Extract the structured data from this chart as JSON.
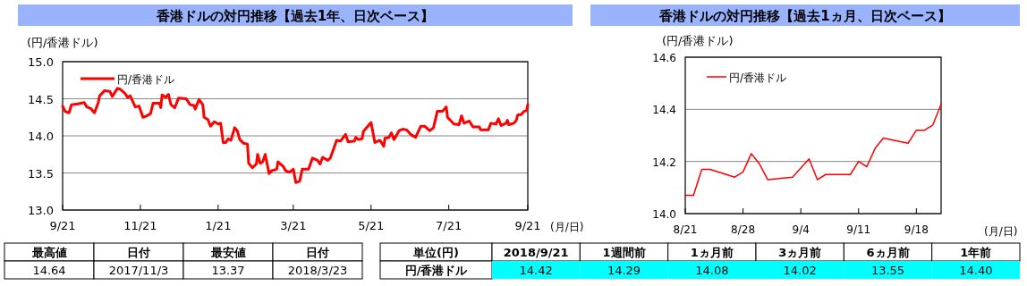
{
  "chart_data": [
    {
      "type": "line",
      "title": "香港ドルの対円推移【過去1年、日次ベース】",
      "ylabel": "(円/香港ドル)",
      "xlabel": "(月/日)",
      "xlim": [
        "2017-09-21",
        "2018-09-21"
      ],
      "xticks": [
        {
          "value": "2017-09-21",
          "label": "9/21"
        },
        {
          "value": "2017-11-21",
          "label": "11/21"
        },
        {
          "value": "2018-01-21",
          "label": "1/21"
        },
        {
          "value": "2018-03-21",
          "label": "3/21"
        },
        {
          "value": "2018-05-21",
          "label": "5/21"
        },
        {
          "value": "2018-07-21",
          "label": "7/21"
        },
        {
          "value": "2018-09-21",
          "label": "9/21"
        }
      ],
      "ylim": [
        13,
        15
      ],
      "yticks": [
        {
          "value": 13,
          "label": "13.0"
        },
        13.5,
        {
          "value": 14,
          "label": "14.0"
        },
        14.5,
        {
          "value": 15,
          "label": "15.0"
        }
      ],
      "grid": "y",
      "legend": "top left",
      "x": [
        "2017-09-21",
        "2017-09-23",
        "2017-09-26",
        "2017-09-28",
        "2017-10-03",
        "2017-10-08",
        "2017-10-10",
        "2017-10-13",
        "2017-10-16",
        "2017-10-19",
        "2017-10-20",
        "2017-10-24",
        "2017-10-28",
        "2017-10-30",
        "2017-11-03",
        "2017-11-05",
        "2017-11-09",
        "2017-11-11",
        "2017-11-13",
        "2017-11-17",
        "2017-11-20",
        "2017-11-23",
        "2017-11-26",
        "2017-11-29",
        "2017-12-01",
        "2017-12-06",
        "2017-12-07",
        "2017-12-08",
        "2017-12-11",
        "2017-12-13",
        "2017-12-15",
        "2017-12-18",
        "2017-12-21",
        "2017-12-27",
        "2017-12-30",
        "2018-01-02",
        "2018-01-03",
        "2018-01-06",
        "2018-01-09",
        "2018-01-10",
        "2018-01-13",
        "2018-01-15",
        "2018-01-18",
        "2018-01-21",
        "2018-01-23",
        "2018-01-25",
        "2018-01-27",
        "2018-01-29",
        "2018-01-31",
        "2018-02-03",
        "2018-02-05",
        "2018-02-07",
        "2018-02-10",
        "2018-02-13",
        "2018-02-14",
        "2018-02-17",
        "2018-02-20",
        "2018-02-21",
        "2018-02-23",
        "2018-02-25",
        "2018-02-27",
        "2018-03-02",
        "2018-03-04",
        "2018-03-08",
        "2018-03-09",
        "2018-03-13",
        "2018-03-15",
        "2018-03-18",
        "2018-03-21",
        "2018-03-23",
        "2018-03-26",
        "2018-03-28",
        "2018-04-02",
        "2018-04-05",
        "2018-04-09",
        "2018-04-11",
        "2018-04-13",
        "2018-04-17",
        "2018-04-19",
        "2018-04-24",
        "2018-04-27",
        "2018-05-01",
        "2018-05-03",
        "2018-05-08",
        "2018-05-09",
        "2018-05-11",
        "2018-05-14",
        "2018-05-15",
        "2018-05-21",
        "2018-05-24",
        "2018-05-28",
        "2018-05-31",
        "2018-06-01",
        "2018-06-04",
        "2018-06-06",
        "2018-06-08",
        "2018-06-12",
        "2018-06-15",
        "2018-06-18",
        "2018-06-21",
        "2018-06-25",
        "2018-06-29",
        "2018-07-02",
        "2018-07-06",
        "2018-07-09",
        "2018-07-12",
        "2018-07-16",
        "2018-07-19",
        "2018-07-20",
        "2018-07-25",
        "2018-07-29",
        "2018-07-31",
        "2018-08-02",
        "2018-08-06",
        "2018-08-09",
        "2018-08-14",
        "2018-08-15",
        "2018-08-21",
        "2018-08-23",
        "2018-08-27",
        "2018-08-29",
        "2018-08-31",
        "2018-09-04",
        "2018-09-05",
        "2018-09-06",
        "2018-09-10",
        "2018-09-12",
        "2018-09-13",
        "2018-09-16",
        "2018-09-18",
        "2018-09-20",
        "2018-09-21"
      ],
      "series": [
        {
          "name": "円/香港ドル",
          "color": "#ff0000",
          "values": [
            14.4,
            14.33,
            14.31,
            14.42,
            14.43,
            14.45,
            14.39,
            14.37,
            14.31,
            14.45,
            14.54,
            14.61,
            14.6,
            14.53,
            14.64,
            14.63,
            14.57,
            14.52,
            14.54,
            14.39,
            14.4,
            14.25,
            14.27,
            14.3,
            14.44,
            14.44,
            14.38,
            14.55,
            14.52,
            14.56,
            14.42,
            14.38,
            14.51,
            14.5,
            14.42,
            14.41,
            14.36,
            14.49,
            14.42,
            14.25,
            14.22,
            14.13,
            14.19,
            14.16,
            14.17,
            13.91,
            13.91,
            13.96,
            13.94,
            14.11,
            14.07,
            13.95,
            13.9,
            13.89,
            13.63,
            13.57,
            13.62,
            13.75,
            13.63,
            13.65,
            13.75,
            13.49,
            13.53,
            13.55,
            13.65,
            13.59,
            13.53,
            13.51,
            13.55,
            13.37,
            13.39,
            13.55,
            13.55,
            13.7,
            13.67,
            13.62,
            13.71,
            13.67,
            13.7,
            13.94,
            13.93,
            14.02,
            13.92,
            13.93,
            13.98,
            13.95,
            13.96,
            14.06,
            14.18,
            13.91,
            13.94,
            13.86,
            13.97,
            13.98,
            14.04,
            13.95,
            14.07,
            14.09,
            14.08,
            14.02,
            13.98,
            14.13,
            14.13,
            14.07,
            14.11,
            14.33,
            14.33,
            14.39,
            14.25,
            14.16,
            14.15,
            14.27,
            14.17,
            14.2,
            14.12,
            14.12,
            14.08,
            14.08,
            14.17,
            14.16,
            14.23,
            14.14,
            14.17,
            14.21,
            14.15,
            14.17,
            14.21,
            14.28,
            14.29,
            14.33,
            14.34,
            14.42
          ]
        }
      ],
      "annotations": [
        "最高値",
        "日付",
        "最安値",
        "日付",
        "14.64",
        "2017/11/3",
        "13.37",
        "2018/3/23"
      ]
    },
    {
      "type": "line",
      "title": "香港ドルの対円推移【過去1ヵ月、日次ベース】",
      "ylabel": "(円/香港ドル)",
      "xlabel": "(月/日)",
      "xlim": [
        "2018-08-21",
        "2018-09-21"
      ],
      "xticks": [
        {
          "value": "2018-08-21",
          "label": "8/21"
        },
        {
          "value": "2018-08-28",
          "label": "8/28"
        },
        {
          "value": "2018-09-04",
          "label": "9/4"
        },
        {
          "value": "2018-09-11",
          "label": "9/11"
        },
        {
          "value": "2018-09-18",
          "label": "9/18"
        }
      ],
      "ylim": [
        14,
        14.6
      ],
      "yticks": [
        {
          "value": 14,
          "label": "14.0"
        },
        14.2,
        14.4,
        14.6
      ],
      "grid": "y",
      "legend": "top left",
      "x": [
        "2018-08-21",
        "2018-08-22",
        "2018-08-23",
        "2018-08-24",
        "2018-08-27",
        "2018-08-28",
        "2018-08-29",
        "2018-08-30",
        "2018-08-31",
        "2018-09-03",
        "2018-09-05",
        "2018-09-06",
        "2018-09-07",
        "2018-09-10",
        "2018-09-11",
        "2018-09-12",
        "2018-09-13",
        "2018-09-14",
        "2018-09-17",
        "2018-09-18",
        "2018-09-19",
        "2018-09-20",
        "2018-09-21"
      ],
      "series": [
        {
          "name": "円/香港ドル",
          "color": "#ff0000",
          "values": [
            14.07,
            14.07,
            14.17,
            14.17,
            14.14,
            14.16,
            14.23,
            14.19,
            14.13,
            14.14,
            14.21,
            14.13,
            14.15,
            14.15,
            14.2,
            14.18,
            14.25,
            14.29,
            14.27,
            14.32,
            14.32,
            14.34,
            14.42
          ]
        }
      ],
      "annotations": [
        "単位(円)",
        "2018/9/21",
        "1週間前",
        "1ヵ月前",
        "3ヵ月前",
        "6ヵ月前",
        "1年前",
        "円/香港ドル",
        "14.42",
        "14.29",
        "14.08",
        "14.02",
        "13.55",
        "14.40"
      ]
    }
  ]
}
